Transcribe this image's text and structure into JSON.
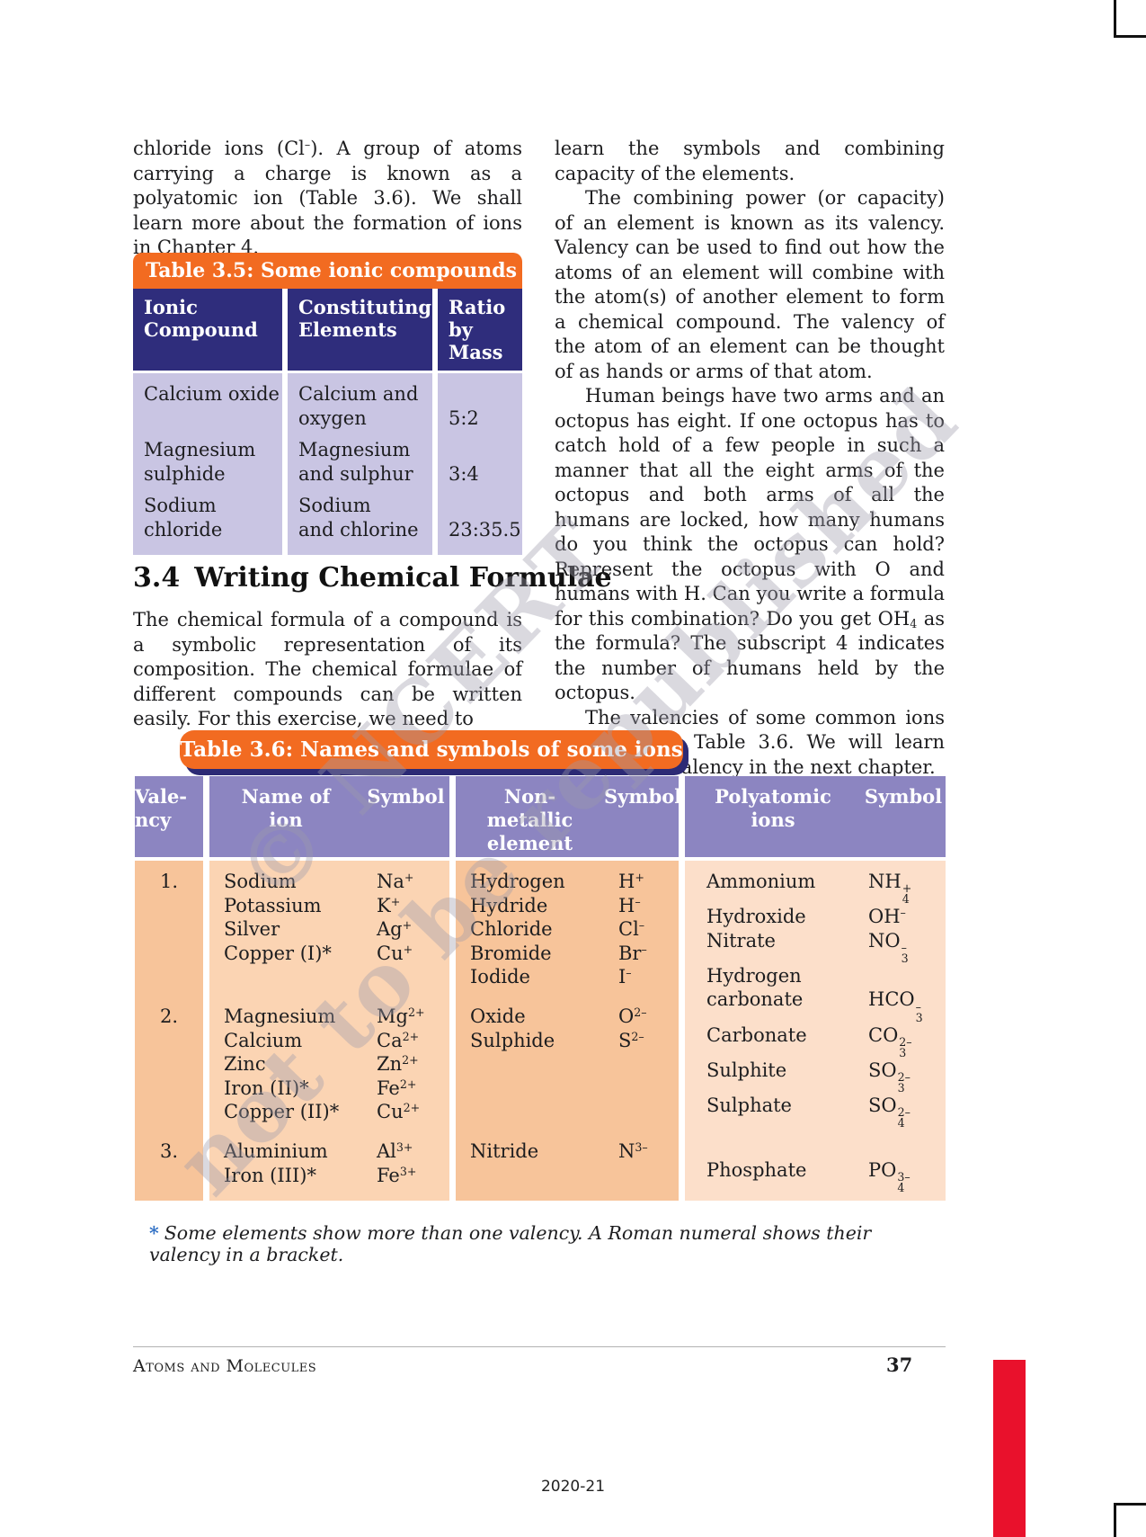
{
  "watermark": {
    "line1": "© NCERT",
    "line2": "not to be republished"
  },
  "columns": {
    "left_para1": "chloride ions (Cl^{–}).  A group of atoms carrying a charge is known as a polyatomic ion (Table 3.6). We shall learn more about the formation of ions in Chapter 4.",
    "section_number": "3.4",
    "section_title": "Writing Chemical Formulae",
    "left_para2": "The chemical formula of a compound is a symbolic representation of its composition. The chemical formulae of different compounds can be written easily. For this exercise, we need to",
    "right_para1": "learn the symbols and combining capacity of the elements.",
    "right_para2": "The combining power (or capacity) of an element is known as its valency. Valency can be used to find out how the atoms of an element will combine with the atom(s) of another element to form a chemical compound. The valency of the atom of an element can be thought of as hands or arms of that atom.",
    "right_para3": "Human beings have two arms and an octopus has eight. If one octopus has to catch hold of a few people in such a manner that all the eight arms of the octopus and both arms of all the humans are locked, how many humans do you think the octopus can hold? Represent the octopus with O and humans with H. Can you write a formula for this combination? Do you get OH_{4} as the formula? The subscript 4 indicates the number of humans held by the octopus.",
    "right_para4": "The valencies of some common ions are given in Table 3.6. We will learn more about valency in the next chapter."
  },
  "table35": {
    "title": "Table 3.5: Some ionic compounds",
    "headers": [
      "Ionic\nCompound",
      "Constituting\nElements",
      "Ratio\nby\nMass"
    ],
    "rows": [
      {
        "compound": "Calcium oxide",
        "elements": "Calcium and\noxygen",
        "ratio": "5:2"
      },
      {
        "compound": "Magnesium\nsulphide",
        "elements": "Magnesium\nand sulphur",
        "ratio": "3:4"
      },
      {
        "compound": "Sodium\nchloride",
        "elements": "Sodium\nand chlorine",
        "ratio": "23:35.5"
      }
    ]
  },
  "table36": {
    "title": "Table 3.6: Names and symbols of some ions",
    "headers": {
      "valency": "Vale-\nncy",
      "ion_name": "Name of\nion",
      "ion_symbol": "Symbol",
      "nonmetal_name": "Non-\nmetallic\nelement",
      "nonmetal_symbol": "Symbol",
      "poly_name": "Polyatomic\nions",
      "poly_symbol": "Symbol"
    },
    "groups": [
      {
        "valency": "1.",
        "ions": [
          [
            "Sodium",
            "Na^{+}"
          ],
          [
            "Potassium",
            "K^{+}"
          ],
          [
            "Silver",
            "Ag^{+}"
          ],
          [
            "Copper (I)*",
            "Cu^{+}"
          ]
        ],
        "nonmetals": [
          [
            "Hydrogen",
            "H^{+}"
          ],
          [
            "Hydride",
            "H^{–}"
          ],
          [
            "Chloride",
            "Cl^{–}"
          ],
          [
            "Bromide",
            "Br^{–}"
          ],
          [
            "Iodide",
            "I^{–}"
          ]
        ],
        "poly": [
          [
            "Ammonium",
            "NH_{4}^{+}"
          ],
          [
            "Hydroxide",
            "OH^{–}"
          ],
          [
            "Nitrate",
            "NO_{3}^{–}"
          ],
          [
            "Hydrogen",
            ""
          ],
          [
            "carbonate",
            "HCO_{3}^{–}"
          ]
        ]
      },
      {
        "valency": "2.",
        "ions": [
          [
            "Magnesium",
            "Mg^{2+}"
          ],
          [
            "Calcium",
            "Ca^{2+}"
          ],
          [
            "Zinc",
            "Zn^{2+}"
          ],
          [
            "Iron (II)*",
            "Fe^{2+}"
          ],
          [
            "Copper (II)*",
            "Cu^{2+}"
          ]
        ],
        "nonmetals": [
          [
            "Oxide",
            "O^{2–}"
          ],
          [
            "Sulphide",
            "S^{2–}"
          ]
        ],
        "poly": [
          [
            "Carbonate",
            "CO_{3}^{2–}"
          ],
          [
            "Sulphite",
            "SO_{3}^{2–}"
          ],
          [
            "Sulphate",
            "SO_{4}^{2–}"
          ]
        ]
      },
      {
        "valency": "3.",
        "ions": [
          [
            "Aluminium",
            "Al^{3+}"
          ],
          [
            "Iron (III)*",
            "Fe^{3+}"
          ]
        ],
        "nonmetals": [
          [
            "Nitride",
            "N^{3–}"
          ]
        ],
        "poly": [
          [
            "Phosphate",
            "PO_{4}^{3–}"
          ]
        ]
      }
    ],
    "footnote_mark": "*",
    "footnote": "Some elements show more than one valency. A Roman numeral shows their valency in a bracket."
  },
  "footer": {
    "running_head": "Atoms and Molecules",
    "page_number": "37",
    "year": "2020-21"
  },
  "colors": {
    "table_title_orange": "#f26b21",
    "table35_header_navy": "#2f2d7c",
    "table35_body_lavender": "#c9c5e3",
    "table36_header_purple": "#8c85c1",
    "table36_body_peach": "#f7c49a",
    "table36_body_peach_light": "#fbd4b3",
    "table36_poly_bg": "#fcdfca",
    "red_bar": "#e9112c",
    "footnote_asterisk_blue": "#2f6fc4"
  }
}
